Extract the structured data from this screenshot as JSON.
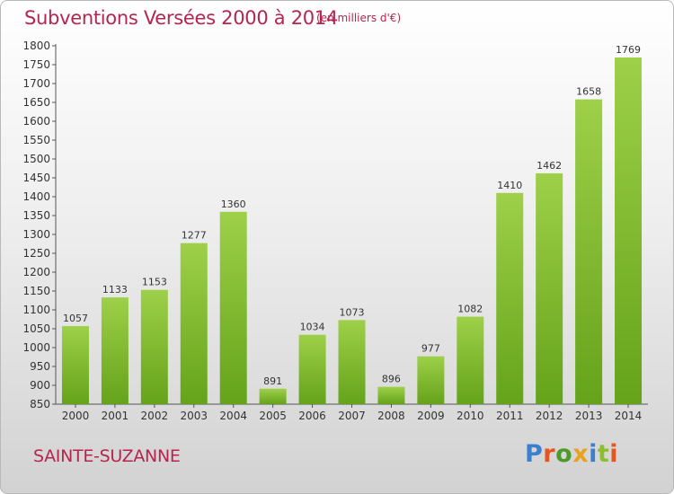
{
  "header": {
    "title": "Subventions Versées 2000 à 2014",
    "subtitle": "(en milliers d'€)"
  },
  "footer": {
    "place": "SAINTE-SUZANNE",
    "logo_text": "Proxiti"
  },
  "colors": {
    "title": "#b5254f",
    "bar_top": "#9ed049",
    "bar_bottom": "#64a31a",
    "logo_letters": [
      "#3b7fd1",
      "#e8541f",
      "#4c9a2a",
      "#e8a21f",
      "#3b7fd1",
      "#8bbf2e",
      "#e8541f"
    ]
  },
  "chart_data": {
    "type": "bar",
    "categories": [
      "2000",
      "2001",
      "2002",
      "2003",
      "2004",
      "2005",
      "2006",
      "2007",
      "2008",
      "2009",
      "2010",
      "2011",
      "2012",
      "2013",
      "2014"
    ],
    "values": [
      1057,
      1133,
      1153,
      1277,
      1360,
      891,
      1034,
      1073,
      896,
      977,
      1082,
      1410,
      1462,
      1658,
      1769
    ],
    "data_labels": [
      "1057",
      "1133",
      "1153",
      "1277",
      "1360",
      "891",
      "1034",
      "1073",
      "896",
      "977",
      "1082",
      "1410",
      "1462",
      "1658",
      "1769"
    ],
    "ylim": [
      850,
      1800
    ],
    "yticks": [
      "850",
      "900",
      "950",
      "1000",
      "1050",
      "1100",
      "1150",
      "1200",
      "1250",
      "1300",
      "1350",
      "1400",
      "1450",
      "1500",
      "1550",
      "1600",
      "1650",
      "1700",
      "1750",
      "1800"
    ],
    "grid": false
  }
}
